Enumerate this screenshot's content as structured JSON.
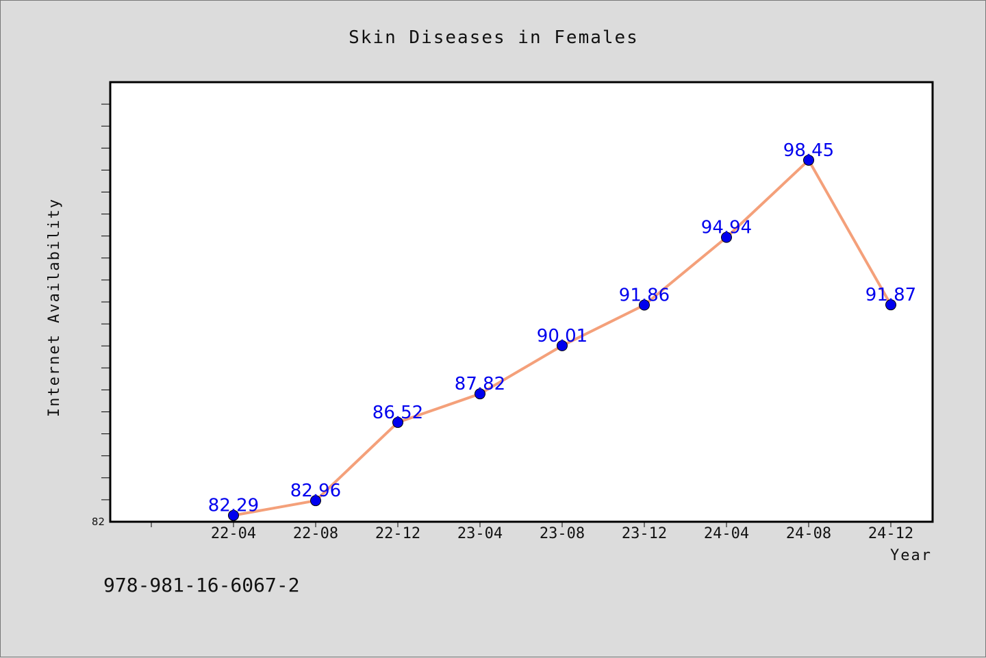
{
  "footer_code": "978-981-16-6067-2",
  "colors": {
    "background": "#dcdcdc",
    "plot_background": "#ffffff",
    "line": "#f4a07a",
    "marker": "#0000ee",
    "data_label": "#0000ee"
  },
  "chart_data": {
    "type": "line",
    "title": "Skin Diseases in Females",
    "xlabel": "Year",
    "ylabel": "Internet Availability",
    "categories": [
      "22-04",
      "22-08",
      "22-12",
      "23-04",
      "23-08",
      "23-12",
      "24-04",
      "24-08",
      "24-12"
    ],
    "values": [
      82.29,
      82.96,
      86.52,
      87.82,
      90.01,
      91.86,
      94.94,
      98.45,
      91.87
    ],
    "data_labels": [
      "82.29",
      "82.96",
      "86.52",
      "87.82",
      "90.01",
      "91.86",
      "94.94",
      "98.45",
      "91.87"
    ],
    "ytick_labels": [
      "82"
    ],
    "ylim": [
      82,
      102
    ],
    "grid": false,
    "legend": "none"
  }
}
